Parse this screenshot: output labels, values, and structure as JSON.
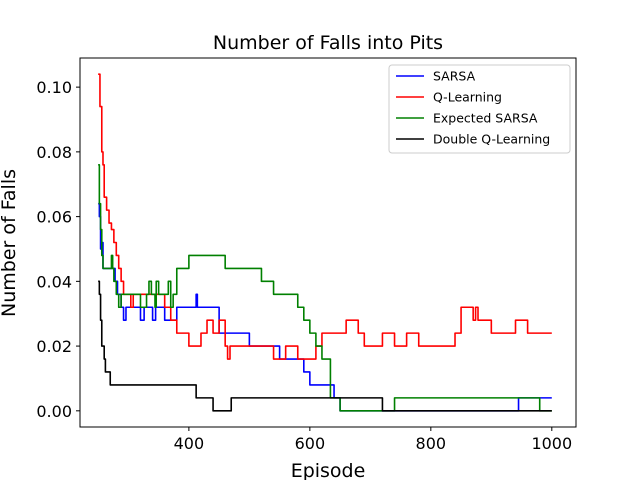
{
  "chart_data": {
    "type": "line",
    "title": "Number of Falls into Pits",
    "xlabel": "Episode",
    "ylabel": "Number of Falls",
    "xlim": [
      220,
      1040
    ],
    "ylim": [
      -0.005,
      0.109
    ],
    "xticks": [
      400,
      600,
      800,
      1000
    ],
    "yticks": [
      0.0,
      0.02,
      0.04,
      0.06,
      0.08,
      0.1
    ],
    "ytick_labels": [
      "0.00",
      "0.02",
      "0.04",
      "0.06",
      "0.08",
      "0.10"
    ],
    "grid": false,
    "legend_position": "top-right",
    "series": [
      {
        "name": "SARSA",
        "color": "#0000ff",
        "x": [
          250,
          252,
          254,
          256,
          258,
          262,
          264,
          268,
          270,
          275,
          278,
          282,
          285,
          288,
          292,
          296,
          300,
          320,
          326,
          334,
          340,
          345,
          360,
          380,
          400,
          410,
          412,
          414,
          420,
          430,
          450,
          470,
          480,
          490,
          500,
          510,
          550,
          560,
          590,
          600,
          610,
          640,
          650,
          660,
          700,
          720,
          940,
          945,
          1000
        ],
        "y": [
          0.064,
          0.06,
          0.05,
          0.052,
          0.044,
          0.044,
          0.044,
          0.044,
          0.044,
          0.044,
          0.04,
          0.036,
          0.036,
          0.032,
          0.028,
          0.032,
          0.032,
          0.028,
          0.032,
          0.032,
          0.028,
          0.032,
          0.028,
          0.032,
          0.032,
          0.032,
          0.036,
          0.032,
          0.032,
          0.032,
          0.024,
          0.024,
          0.024,
          0.024,
          0.02,
          0.02,
          0.016,
          0.016,
          0.012,
          0.008,
          0.008,
          0.004,
          0.0,
          0.0,
          0.0,
          0.0,
          0.0,
          0.004,
          0.004
        ]
      },
      {
        "name": "Q-Learning",
        "color": "#ff0000",
        "x": [
          250,
          253,
          256,
          258,
          260,
          262,
          264,
          268,
          272,
          276,
          280,
          284,
          288,
          292,
          296,
          300,
          304,
          308,
          320,
          340,
          360,
          370,
          380,
          390,
          400,
          420,
          430,
          440,
          450,
          460,
          464,
          468,
          470,
          480,
          500,
          510,
          520,
          540,
          560,
          580,
          600,
          610,
          620,
          640,
          650,
          660,
          680,
          690,
          700,
          720,
          740,
          760,
          780,
          800,
          820,
          840,
          850,
          860,
          870,
          874,
          878,
          882,
          890,
          900,
          920,
          940,
          960,
          980,
          1000
        ],
        "y": [
          0.104,
          0.094,
          0.08,
          0.076,
          0.066,
          0.066,
          0.062,
          0.058,
          0.056,
          0.052,
          0.048,
          0.044,
          0.04,
          0.036,
          0.036,
          0.036,
          0.032,
          0.036,
          0.036,
          0.036,
          0.032,
          0.028,
          0.024,
          0.024,
          0.02,
          0.024,
          0.028,
          0.024,
          0.028,
          0.02,
          0.016,
          0.02,
          0.02,
          0.02,
          0.02,
          0.02,
          0.02,
          0.016,
          0.02,
          0.016,
          0.016,
          0.02,
          0.024,
          0.024,
          0.024,
          0.028,
          0.024,
          0.02,
          0.02,
          0.024,
          0.02,
          0.024,
          0.02,
          0.02,
          0.02,
          0.024,
          0.032,
          0.032,
          0.028,
          0.032,
          0.028,
          0.028,
          0.028,
          0.024,
          0.024,
          0.028,
          0.024,
          0.024,
          0.024
        ]
      },
      {
        "name": "Expected SARSA",
        "color": "#008000",
        "x": [
          250,
          252,
          254,
          256,
          258,
          262,
          266,
          270,
          272,
          274,
          276,
          280,
          284,
          288,
          292,
          296,
          300,
          310,
          320,
          330,
          334,
          338,
          340,
          344,
          346,
          348,
          350,
          356,
          360,
          366,
          370,
          374,
          376,
          380,
          384,
          390,
          400,
          420,
          440,
          460,
          480,
          500,
          520,
          540,
          560,
          580,
          590,
          600,
          610,
          620,
          630,
          634,
          640,
          650,
          660,
          680,
          700,
          720,
          740,
          960,
          980,
          1000
        ],
        "y": [
          0.076,
          0.064,
          0.056,
          0.048,
          0.044,
          0.044,
          0.044,
          0.044,
          0.048,
          0.044,
          0.04,
          0.036,
          0.032,
          0.036,
          0.036,
          0.036,
          0.036,
          0.036,
          0.032,
          0.036,
          0.04,
          0.036,
          0.036,
          0.032,
          0.04,
          0.04,
          0.036,
          0.036,
          0.036,
          0.04,
          0.032,
          0.036,
          0.036,
          0.044,
          0.044,
          0.044,
          0.048,
          0.048,
          0.048,
          0.044,
          0.044,
          0.044,
          0.04,
          0.036,
          0.036,
          0.032,
          0.028,
          0.024,
          0.02,
          0.016,
          0.016,
          0.004,
          0.004,
          0.0,
          0.0,
          0.0,
          0.0,
          0.0,
          0.004,
          0.004,
          0.0,
          0.0
        ]
      },
      {
        "name": "Double Q-Learning",
        "color": "#000000",
        "x": [
          250,
          252,
          254,
          256,
          260,
          262,
          268,
          270,
          280,
          300,
          320,
          340,
          360,
          380,
          400,
          410,
          412,
          420,
          440,
          445,
          460,
          465,
          470,
          500,
          550,
          600,
          650,
          700,
          715,
          720,
          800,
          900,
          1000
        ],
        "y": [
          0.04,
          0.036,
          0.028,
          0.02,
          0.016,
          0.012,
          0.012,
          0.008,
          0.008,
          0.008,
          0.008,
          0.008,
          0.008,
          0.008,
          0.008,
          0.008,
          0.004,
          0.004,
          0.0,
          0.0,
          0.0,
          0.0,
          0.004,
          0.004,
          0.004,
          0.004,
          0.004,
          0.004,
          0.004,
          0.0,
          0.0,
          0.0,
          0.0
        ]
      }
    ]
  }
}
